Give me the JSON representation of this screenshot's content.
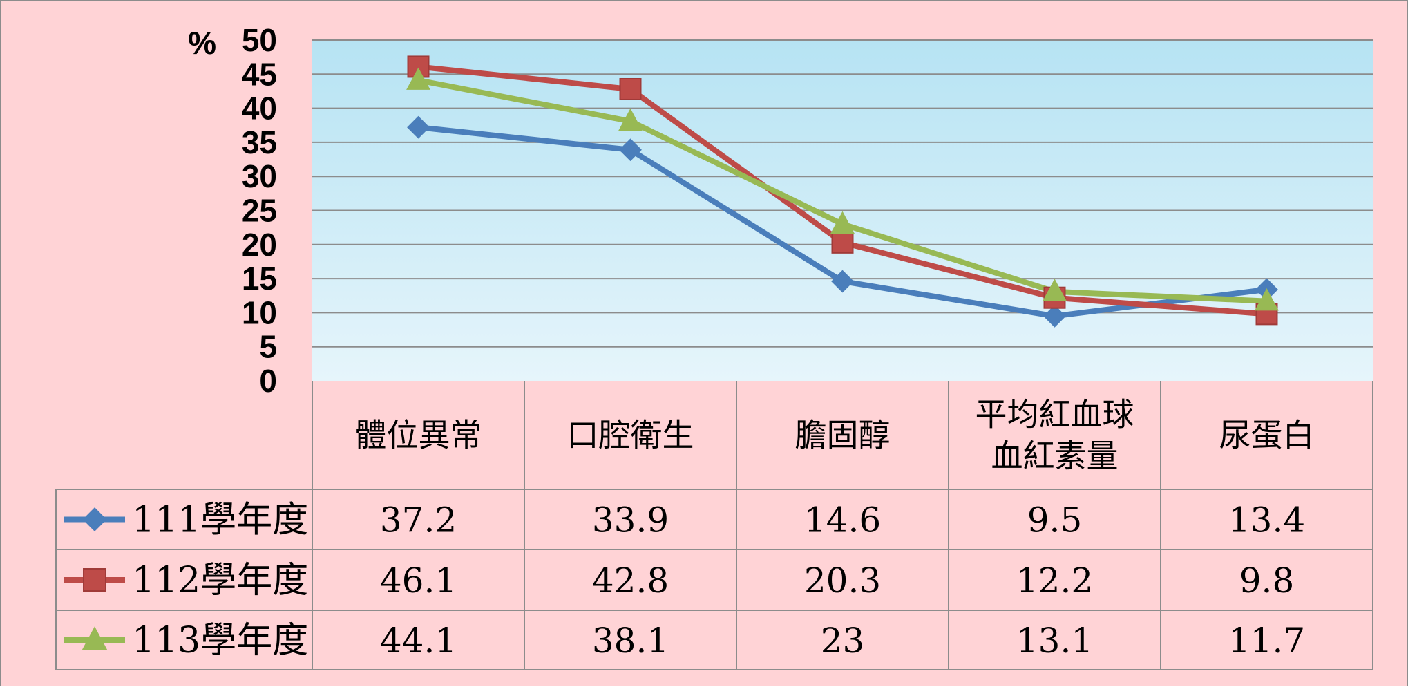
{
  "chart_data": {
    "type": "line",
    "ylabel": "%",
    "ylim": [
      0,
      50
    ],
    "yticks": [
      0,
      5,
      10,
      15,
      20,
      25,
      30,
      35,
      40,
      45,
      50
    ],
    "grid": true,
    "legend": "data-table-left",
    "categories": [
      [
        "體位異常"
      ],
      [
        "口腔衛生"
      ],
      [
        "膽固醇"
      ],
      [
        "平均紅血球",
        "血紅素量"
      ],
      [
        "尿蛋白"
      ]
    ],
    "series": [
      {
        "name": "111學年度",
        "color": "#4a7ebb",
        "marker": "diamond",
        "values": [
          37.2,
          33.9,
          14.6,
          9.5,
          13.4
        ],
        "labels": [
          "37.2",
          "33.9",
          "14.6",
          "9.5",
          "13.4"
        ]
      },
      {
        "name": "112學年度",
        "color": "#be4b48",
        "marker": "square",
        "values": [
          46.1,
          42.8,
          20.3,
          12.2,
          9.8
        ],
        "labels": [
          "46.1",
          "42.8",
          "20.3",
          "12.2",
          "9.8"
        ]
      },
      {
        "name": "113學年度",
        "color": "#98b954",
        "marker": "triangle",
        "values": [
          44.1,
          38.1,
          23,
          13.1,
          11.7
        ],
        "labels": [
          "44.1",
          "38.1",
          "23",
          "13.1",
          "11.7"
        ]
      }
    ]
  }
}
